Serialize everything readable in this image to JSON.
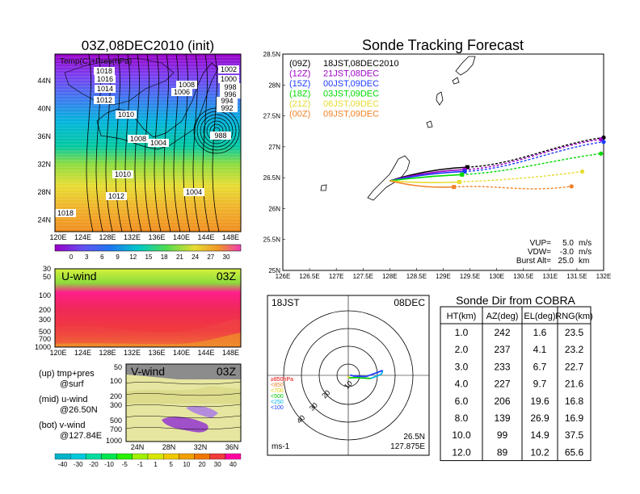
{
  "chart_data": [
    {
      "type": "heatmap",
      "title": "03Z,08DEC2010 (init)",
      "inner_label": "Temp(C)+Pres(hPa)",
      "y_ticks": [
        "44N",
        "40N",
        "36N",
        "32N",
        "28N",
        "24N"
      ],
      "x_ticks": [
        "120E",
        "124E",
        "128E",
        "132E",
        "136E",
        "140E",
        "144E",
        "148E"
      ],
      "colorbar_ticks": [
        "0",
        "3",
        "6",
        "9",
        "12",
        "15",
        "18",
        "21",
        "24",
        "27",
        "30"
      ],
      "pressure_labels": [
        "1018",
        "1016",
        "1014",
        "1012",
        "1010",
        "1008",
        "1006",
        "1008",
        "1004",
        "1002",
        "1000",
        "998",
        "996",
        "994",
        "992",
        "988",
        "1010",
        "1012",
        "1004",
        "1018"
      ],
      "colormap_start": "#9a00c8",
      "colormap_end": "#ff7e00"
    },
    {
      "type": "line",
      "title": "Sonde Tracking Forecast",
      "x_ticks": [
        "126E",
        "126.5E",
        "127E",
        "127.5E",
        "128E",
        "128.5E",
        "129E",
        "129.5E",
        "130E",
        "130.5E",
        "131E",
        "131.5E",
        "132E"
      ],
      "y_ticks": [
        "28.5N",
        "28N",
        "27.5N",
        "27N",
        "26.5N",
        "26N",
        "25.5N",
        "25N"
      ],
      "xlim": [
        126,
        132
      ],
      "ylim": [
        25,
        28.5
      ],
      "start": {
        "lon": 128.0,
        "lat": 26.45
      },
      "legend": [
        {
          "code": "(09Z)",
          "label": "18JST,08DEC2010",
          "color": "#000000"
        },
        {
          "code": "(12Z)",
          "label": "21JST,08DEC",
          "color": "#a000c8"
        },
        {
          "code": "(15Z)",
          "label": "00JST,09DEC",
          "color": "#1e3cff"
        },
        {
          "code": "(18Z)",
          "label": "03JST,09DEC",
          "color": "#00dc00"
        },
        {
          "code": "(21Z)",
          "label": "06JST,09DEC",
          "color": "#e6dc32"
        },
        {
          "code": "(00Z)",
          "label": "09JST,09DEC",
          "color": "#f08228"
        }
      ],
      "series": [
        {
          "name": "(09Z)",
          "color": "#000000",
          "burst": [
            129.45,
            26.67
          ],
          "end": [
            132.0,
            27.15
          ]
        },
        {
          "name": "(12Z)",
          "color": "#a000c8",
          "burst": [
            129.4,
            26.63
          ],
          "end": [
            131.95,
            27.12
          ]
        },
        {
          "name": "(15Z)",
          "color": "#1e3cff",
          "burst": [
            129.4,
            26.6
          ],
          "end": [
            132.0,
            27.08
          ]
        },
        {
          "name": "(18Z)",
          "color": "#00dc00",
          "burst": [
            129.35,
            26.55
          ],
          "end": [
            131.95,
            26.89
          ]
        },
        {
          "name": "(21Z)",
          "color": "#e6dc32",
          "burst": [
            129.3,
            26.43
          ],
          "end": [
            131.6,
            26.6
          ]
        },
        {
          "name": "(00Z)",
          "color": "#f08228",
          "burst": [
            129.2,
            26.35
          ],
          "end": [
            131.4,
            26.36
          ]
        }
      ],
      "params": [
        {
          "key": "VUP=",
          "value": "5.0",
          "unit": "m/s"
        },
        {
          "key": "VDW=",
          "value": "-3.0",
          "unit": "m/s"
        },
        {
          "key": "Burst Alt=",
          "value": "25.0",
          "unit": "km"
        }
      ]
    },
    {
      "type": "heatmap",
      "title": "U-wind",
      "time": "03Z",
      "y_ticks": [
        "30",
        "50",
        "100",
        "200",
        "300",
        "500",
        "700",
        "1000"
      ],
      "x_ticks": [
        "120E",
        "124E",
        "128E",
        "132E",
        "136E",
        "140E",
        "144E",
        "148E"
      ]
    },
    {
      "type": "heatmap",
      "title": "V-wind",
      "time": "03Z",
      "y_ticks": [
        "50",
        "100",
        "200",
        "300",
        "500",
        "700",
        "1000"
      ],
      "x_ticks": [
        "24N",
        "28N",
        "32N",
        "36N"
      ],
      "colorbar_ticks": [
        "-40",
        "-30",
        "-20",
        "-10",
        "-5",
        "-1",
        "1",
        "5",
        "10",
        "20",
        "30",
        "40"
      ],
      "colorbar_colors": [
        "#00b4c8",
        "#00c8dc",
        "#00dca0",
        "#00e650",
        "#28f000",
        "#a0f000",
        "#d7e600",
        "#f0c800",
        "#f0a000",
        "#f07800",
        "#f03c3c",
        "#ff00a0"
      ]
    },
    {
      "type": "scatter",
      "subtype": "polar",
      "time_label": "18JST",
      "date_label": "08DEC",
      "ring_labels": [
        "10",
        "20",
        "30",
        "40"
      ],
      "legend_levels": [
        "≥850hPa",
        "<850",
        "<700",
        "<500",
        "<250",
        "<100"
      ],
      "legend_colors": [
        "#e60000",
        "#f08228",
        "#e6c800",
        "#00c800",
        "#00b4e6",
        "#1e3cff"
      ],
      "location": "26.5N",
      "location2": "127.875E",
      "unit": "ms-1",
      "track": [
        {
          "r": 0.6,
          "az": 210,
          "color": "#f08228"
        },
        {
          "r": 1.6,
          "az": 160,
          "color": "#e6c800"
        },
        {
          "r": 3.0,
          "az": 120,
          "color": "#00c800"
        },
        {
          "r": 5.5,
          "az": 105,
          "color": "#00c800"
        },
        {
          "r": 14.0,
          "az": 98,
          "color": "#00c800"
        },
        {
          "r": 20.5,
          "az": 88,
          "color": "#00b4e6"
        },
        {
          "r": 21.5,
          "az": 82,
          "color": "#00b4e6"
        },
        {
          "r": 11.0,
          "az": 94,
          "color": "#1e3cff"
        },
        {
          "r": 3.0,
          "az": 98,
          "color": "#1e3cff"
        },
        {
          "r": 1.2,
          "az": 80,
          "color": "#1e3cff"
        }
      ]
    },
    {
      "type": "table",
      "title": "Sonde Dir from COBRA",
      "columns": [
        "HT(km)",
        "AZ(deg)",
        "EL(deg)",
        "RNG(km)"
      ],
      "rows": [
        [
          "1.0",
          "242",
          "1.6",
          "23.5"
        ],
        [
          "2.0",
          "237",
          "4.1",
          "23.2"
        ],
        [
          "3.0",
          "233",
          "6.7",
          "22.7"
        ],
        [
          "4.0",
          "227",
          "9.7",
          "21.6"
        ],
        [
          "6.0",
          "206",
          "19.6",
          "16.8"
        ],
        [
          "8.0",
          "139",
          "26.9",
          "16.9"
        ],
        [
          "10.0",
          "99",
          "14.9",
          "37.5"
        ],
        [
          "12.0",
          "89",
          "10.2",
          "65.6"
        ]
      ]
    }
  ],
  "side_notes": [
    {
      "title": "(up) tmp+pres",
      "sub": "@surf"
    },
    {
      "title": "(mid) u-wind",
      "sub": "@26.50N"
    },
    {
      "title": "(bot) v-wind",
      "sub": "@127.84E"
    }
  ]
}
